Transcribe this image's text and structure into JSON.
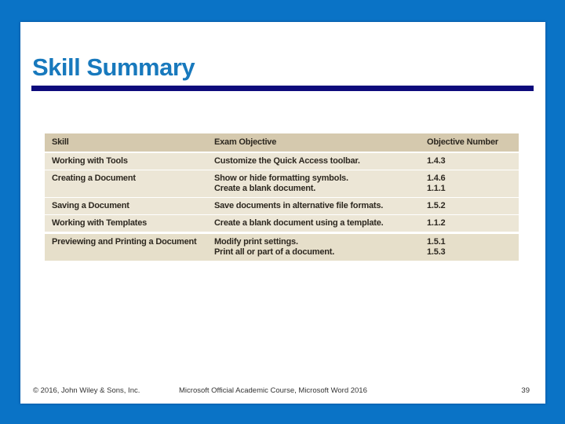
{
  "slide": {
    "title": "Skill Summary"
  },
  "colors": {
    "frame_blue": "#0a73c6",
    "title_blue": "#1879bd",
    "rule_navy": "#0d0a7c",
    "table_header_tan": "#d5c9ae",
    "table_body_tan": "#ece6d6",
    "table_last_row_tan": "#e6dfca"
  },
  "table": {
    "headers": [
      "Skill",
      "Exam Objective",
      "Objective Number"
    ],
    "rows": [
      {
        "skill": "Working with Tools",
        "objective": "Customize the Quick Access toolbar.",
        "number": "1.4.3"
      },
      {
        "skill": "Creating a Document",
        "objective": "Show or hide formatting symbols.\nCreate a blank document.",
        "number": "1.4.6\n1.1.1"
      },
      {
        "skill": "Saving a Document",
        "objective": "Save documents in alternative file formats.",
        "number": "1.5.2"
      },
      {
        "skill": "Working with Templates",
        "objective": "Create a blank document using a template.",
        "number": "1.1.2"
      },
      {
        "skill": "Previewing and Printing a Document",
        "objective": "Modify print settings.\nPrint all or part of a document.",
        "number": "1.5.1\n1.5.3"
      }
    ]
  },
  "footer": {
    "copyright": "© 2016, John Wiley & Sons, Inc.",
    "course": "Microsoft Official Academic Course, Microsoft Word 2016",
    "page_number": "39"
  }
}
